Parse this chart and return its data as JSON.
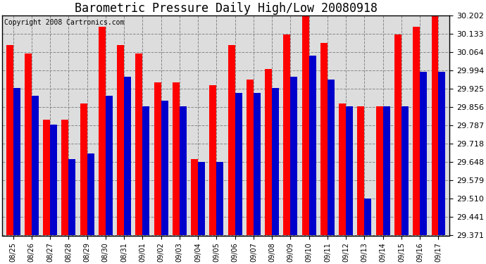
{
  "title": "Barometric Pressure Daily High/Low 20080918",
  "copyright": "Copyright 2008 Cartronics.com",
  "dates": [
    "08/25",
    "08/26",
    "08/27",
    "08/28",
    "08/29",
    "08/30",
    "08/31",
    "09/01",
    "09/02",
    "09/03",
    "09/04",
    "09/05",
    "09/06",
    "09/07",
    "09/08",
    "09/09",
    "09/10",
    "09/11",
    "09/12",
    "09/13",
    "09/14",
    "09/15",
    "09/16",
    "09/17"
  ],
  "highs": [
    30.09,
    30.06,
    29.81,
    29.81,
    29.87,
    30.16,
    30.09,
    30.06,
    29.95,
    29.95,
    29.66,
    29.94,
    30.09,
    29.96,
    30.0,
    30.13,
    30.2,
    30.1,
    29.87,
    29.86,
    29.86,
    30.13,
    30.16,
    30.2
  ],
  "lows": [
    29.93,
    29.9,
    29.79,
    29.66,
    29.68,
    29.9,
    29.97,
    29.86,
    29.88,
    29.86,
    29.65,
    29.65,
    29.91,
    29.91,
    29.93,
    29.97,
    30.05,
    29.96,
    29.86,
    29.51,
    29.86,
    29.86,
    29.99,
    29.99
  ],
  "high_color": "#ff0000",
  "low_color": "#0000cc",
  "bg_color": "#ffffff",
  "plot_bg_color": "#dddddd",
  "grid_color": "#888888",
  "ymin": 29.371,
  "ymax": 30.202,
  "yticks": [
    29.371,
    29.441,
    29.51,
    29.579,
    29.648,
    29.718,
    29.787,
    29.856,
    29.925,
    29.994,
    30.064,
    30.133,
    30.202
  ],
  "title_fontsize": 12,
  "copyright_fontsize": 7,
  "bar_width": 0.38
}
